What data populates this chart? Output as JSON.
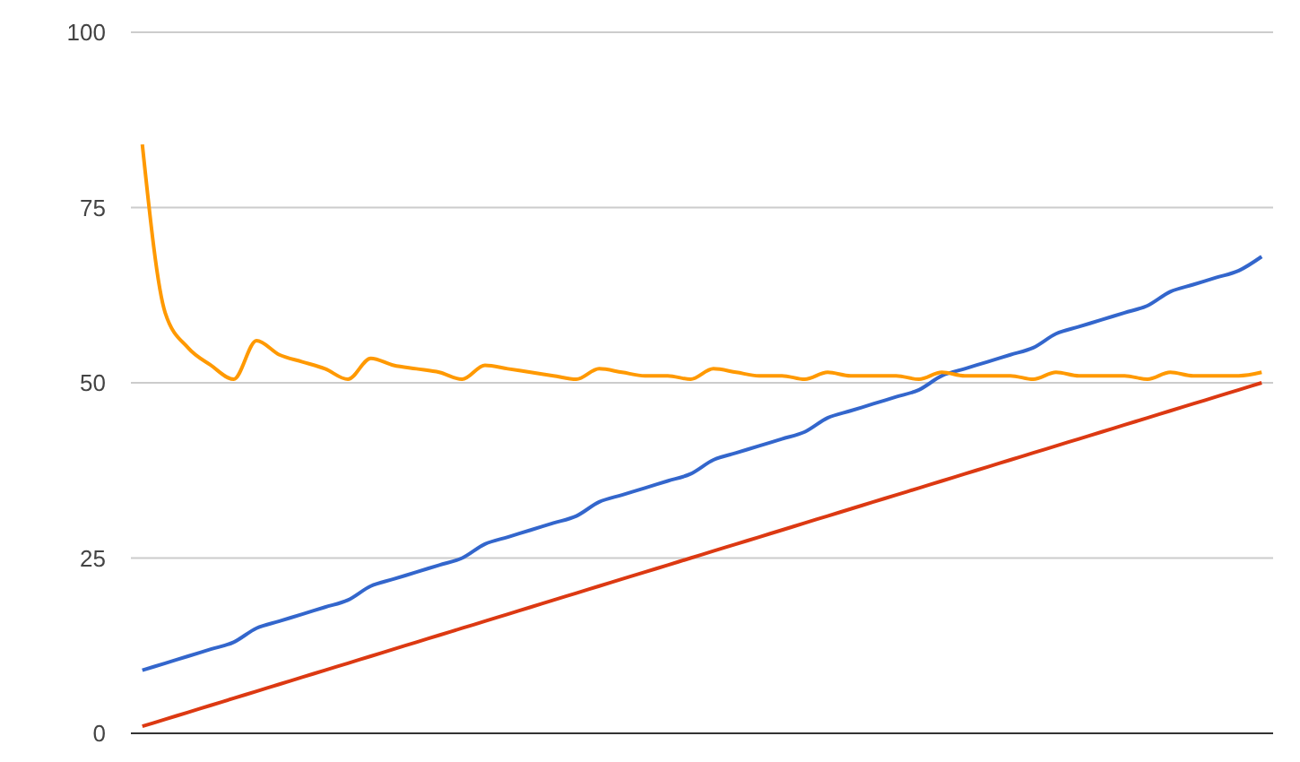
{
  "chart_data": {
    "type": "line",
    "categories": [
      null,
      null,
      null,
      null,
      null,
      null,
      null,
      null,
      null,
      null,
      null,
      null,
      null,
      null,
      null,
      null,
      null,
      null,
      null,
      null,
      null,
      null,
      null,
      null,
      null,
      null,
      null,
      null,
      null,
      null,
      null,
      null,
      null,
      null,
      null,
      null,
      null,
      null,
      null,
      null,
      null,
      null,
      null,
      null,
      null,
      null,
      null,
      null,
      null,
      null
    ],
    "series": [
      {
        "color": "#3366cc",
        "values": [
          9,
          10,
          11,
          12,
          13,
          15,
          16,
          17,
          18,
          19,
          21,
          22,
          23,
          24,
          25,
          27,
          28,
          29,
          30,
          31,
          33,
          34,
          35,
          36,
          37,
          39,
          40,
          41,
          42,
          43,
          45,
          46,
          47,
          48,
          49,
          51,
          52,
          53,
          54,
          55,
          57,
          58,
          59,
          60,
          61,
          63,
          64,
          65,
          66,
          68
        ]
      },
      {
        "color": "#dc3912",
        "values": [
          1,
          2,
          3,
          4,
          5,
          6,
          7,
          8,
          9,
          10,
          11,
          12,
          13,
          14,
          15,
          16,
          17,
          18,
          19,
          20,
          21,
          22,
          23,
          24,
          25,
          26,
          27,
          28,
          29,
          30,
          31,
          32,
          33,
          34,
          35,
          36,
          37,
          38,
          39,
          40,
          41,
          42,
          43,
          44,
          45,
          46,
          47,
          48,
          49,
          50
        ]
      },
      {
        "color": "#ff9900",
        "values": [
          84,
          60,
          55,
          52.5,
          50.5,
          56,
          54,
          53,
          52,
          50.5,
          53.5,
          52.5,
          52,
          51.5,
          50.5,
          52.5,
          52,
          51.5,
          51,
          50.5,
          52,
          51.5,
          51,
          51,
          50.5,
          52,
          51.5,
          51,
          51,
          50.5,
          51.5,
          51,
          51,
          51,
          50.5,
          51.5,
          51,
          51,
          51,
          50.5,
          51.5,
          51,
          51,
          51,
          50.5,
          51.5,
          51,
          51,
          51,
          51.5
        ]
      }
    ],
    "ylim": [
      0,
      100
    ],
    "yticks": [
      0,
      25,
      50,
      75,
      100
    ],
    "grid": "y",
    "tick_labels": "y"
  }
}
